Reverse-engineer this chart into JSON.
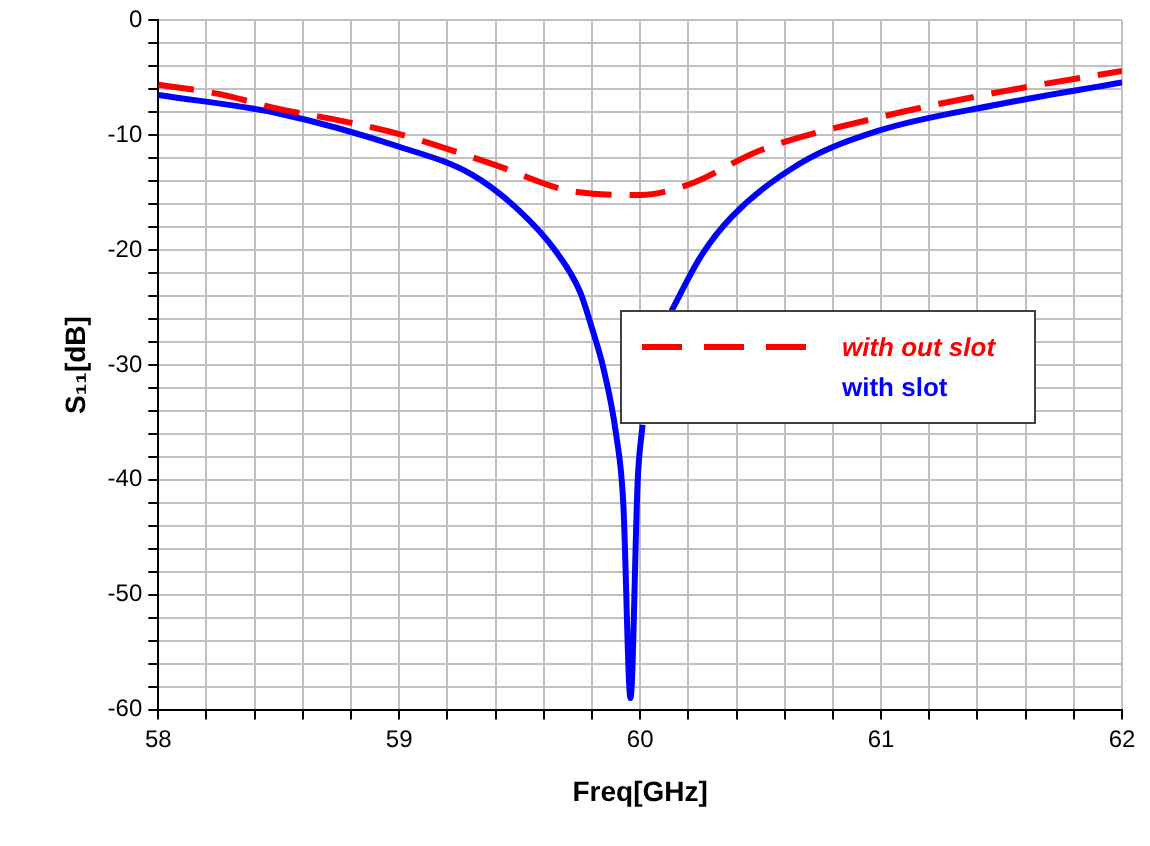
{
  "chart_data": {
    "type": "line",
    "xlabel": "Freq[GHz]",
    "ylabel": "S₁₁[dB]",
    "xlim": [
      58,
      62
    ],
    "ylim": [
      -60,
      0
    ],
    "xticks": [
      58,
      {
        "value": 58.2,
        "label": null
      },
      {
        "value": 58.4,
        "label": null
      },
      {
        "value": 58.6,
        "label": null
      },
      {
        "value": 58.8,
        "label": null
      },
      59,
      {
        "value": 59.2,
        "label": null
      },
      {
        "value": 59.4,
        "label": null
      },
      {
        "value": 59.6,
        "label": null
      },
      {
        "value": 59.8,
        "label": null
      },
      60,
      {
        "value": 60.2,
        "label": null
      },
      {
        "value": 60.4,
        "label": null
      },
      {
        "value": 60.6,
        "label": null
      },
      {
        "value": 60.8,
        "label": null
      },
      61,
      {
        "value": 61.2,
        "label": null
      },
      {
        "value": 61.4,
        "label": null
      },
      {
        "value": 61.6,
        "label": null
      },
      {
        "value": 61.8,
        "label": null
      },
      62
    ],
    "yticks": [
      -60,
      {
        "value": -58,
        "label": null
      },
      {
        "value": -56,
        "label": null
      },
      {
        "value": -54,
        "label": null
      },
      {
        "value": -52,
        "label": null
      },
      -50,
      {
        "value": -48,
        "label": null
      },
      {
        "value": -46,
        "label": null
      },
      {
        "value": -44,
        "label": null
      },
      {
        "value": -42,
        "label": null
      },
      -40,
      {
        "value": -38,
        "label": null
      },
      {
        "value": -36,
        "label": null
      },
      {
        "value": -34,
        "label": null
      },
      {
        "value": -32,
        "label": null
      },
      -30,
      {
        "value": -28,
        "label": null
      },
      {
        "value": -26,
        "label": null
      },
      {
        "value": -24,
        "label": null
      },
      {
        "value": -22,
        "label": null
      },
      -20,
      {
        "value": -18,
        "label": null
      },
      {
        "value": -16,
        "label": null
      },
      {
        "value": -14,
        "label": null
      },
      {
        "value": -12,
        "label": null
      },
      -10,
      {
        "value": -8,
        "label": null
      },
      {
        "value": -6,
        "label": null
      },
      {
        "value": -4,
        "label": null
      },
      {
        "value": -2,
        "label": null
      },
      0
    ],
    "grid": true,
    "legend": "right",
    "marker": "none",
    "series": [
      {
        "name": "with out slot",
        "color": "#ff0000",
        "line_style": "dashed",
        "x": [
          58,
          58.25,
          58.5,
          58.75,
          59,
          59.4,
          59.7,
          60,
          60.2,
          60.5,
          61,
          61.5,
          62
        ],
        "values": [
          -5.6,
          -6.4,
          -7.7,
          -8.7,
          -9.9,
          -12.6,
          -14.8,
          -15.2,
          -14.3,
          -11.3,
          -8.4,
          -6.2,
          -4.4
        ]
      },
      {
        "name": "with slot",
        "color": "#0000ff",
        "line_style": "solid",
        "x": [
          58,
          58.5,
          59,
          59.3,
          59.5,
          59.65,
          59.75,
          59.8,
          59.85,
          59.9,
          59.93,
          59.96,
          59.99,
          60.01,
          60.05,
          60.13,
          60.25,
          60.38,
          60.66,
          60.99,
          61.49,
          62
        ],
        "values": [
          -6.5,
          -8.1,
          -11,
          -13.4,
          -16.6,
          -20.1,
          -23.6,
          -26.8,
          -30.5,
          -36,
          -42,
          -59,
          -40,
          -35.2,
          null,
          -25.3,
          -20.6,
          -17.1,
          -12.5,
          -9.6,
          -7.3,
          -5.4
        ]
      }
    ]
  }
}
